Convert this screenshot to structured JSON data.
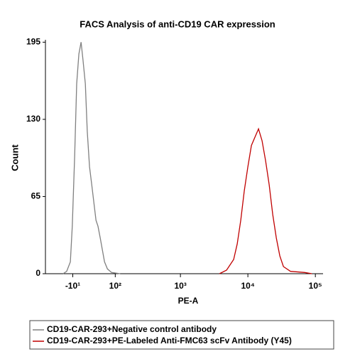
{
  "chart_data": {
    "type": "histogram-line",
    "title": "FACS Analysis of anti-CD19 CAR expression",
    "x_label": "PE-A",
    "y_label": "Count",
    "xscale": "asinh",
    "xlim": [
      -80,
      130000
    ],
    "ylim": [
      0,
      197
    ],
    "xticks": [
      {
        "value": -10,
        "label": "-10¹"
      },
      {
        "value": 100,
        "label": "10²"
      },
      {
        "value": 1000,
        "label": "10³"
      },
      {
        "value": 10000,
        "label": "10⁴"
      },
      {
        "value": 100000,
        "label": "10⁵"
      }
    ],
    "yticks": [
      0,
      65,
      130,
      195
    ],
    "series": [
      {
        "name": "CD19-CAR-293+Negative control antibody",
        "color": "#808080",
        "x": [
          -31,
          -23,
          -15,
          -11,
          -6,
          -2,
          2.5,
          7,
          11,
          16,
          20,
          25,
          30,
          35,
          40,
          45,
          51,
          57,
          63,
          72,
          86,
          121
        ],
        "values": [
          0,
          2,
          10,
          40,
          100,
          160,
          185,
          195,
          180,
          160,
          120,
          90,
          75,
          60,
          45,
          40,
          30,
          20,
          10,
          4,
          1,
          0
        ]
      },
      {
        "name": "CD19-CAR-293+PE-Labeled Anti-FMC63 scFv Antibody (Y45)",
        "color": "#c00000",
        "x": [
          3790,
          4830,
          6160,
          6950,
          7850,
          8860,
          10000,
          11290,
          12740,
          14380,
          16240,
          18330,
          20690,
          23360,
          26370,
          29760,
          33600,
          42800,
          69500,
          88700
        ],
        "values": [
          0,
          3,
          12,
          25,
          45,
          70,
          90,
          108,
          115,
          122,
          112,
          95,
          75,
          50,
          30,
          15,
          6,
          2,
          1,
          0
        ]
      }
    ]
  }
}
